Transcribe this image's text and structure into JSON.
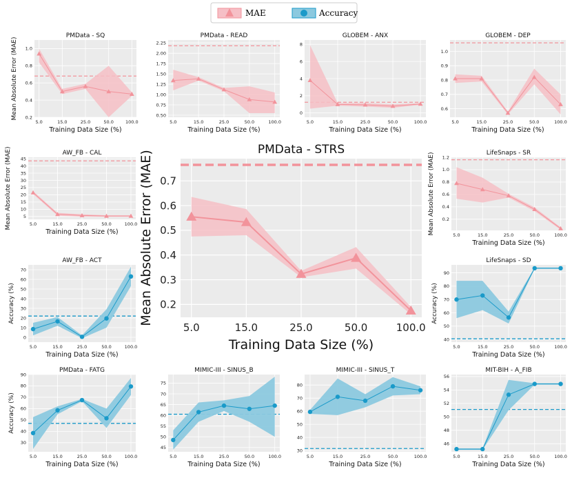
{
  "legend": {
    "mae_label": "MAE",
    "acc_label": "Accuracy",
    "mae_color": "#f2939b",
    "acc_color": "#1a9ac9",
    "mae_band_color": "#f6bfc6",
    "acc_band_color": "#8cc9df",
    "plot_bg": "#ebebeb"
  },
  "chart_data": [
    {
      "id": "pm-sq",
      "title": "PMData - SQ",
      "metric": "mae",
      "type": "line",
      "categories": [
        "5.0",
        "15.0",
        "25.0",
        "50.0",
        "100.0"
      ],
      "values": [
        0.94,
        0.5,
        0.56,
        0.5,
        0.47
      ],
      "lower": [
        0.84,
        0.47,
        0.53,
        0.2,
        0.45
      ],
      "upper": [
        1.0,
        0.53,
        0.59,
        0.8,
        0.49
      ],
      "baseline": 0.68,
      "ylim": [
        0.2,
        1.1
      ],
      "yticks": [
        "0.2",
        "0.4",
        "0.6",
        "0.8",
        "1.0"
      ],
      "xlabel": "Training Data Size (%)",
      "ylabel": "Mean Absolute Error (MAE)"
    },
    {
      "id": "pm-read",
      "title": "PMData - READ",
      "metric": "mae",
      "type": "line",
      "categories": [
        "5.0",
        "15.0",
        "25.0",
        "50.0",
        "100.0"
      ],
      "values": [
        1.34,
        1.38,
        1.12,
        0.88,
        0.82
      ],
      "lower": [
        1.1,
        1.34,
        1.08,
        0.55,
        0.55
      ],
      "upper": [
        1.6,
        1.42,
        1.16,
        1.2,
        1.05
      ],
      "baseline": 2.18,
      "ylim": [
        0.45,
        2.32
      ],
      "yticks": [
        "0.50",
        "0.75",
        "1.00",
        "1.25",
        "1.50",
        "1.75",
        "2.00",
        "2.25"
      ],
      "xlabel": "Training Data Size (%)",
      "ylabel": ""
    },
    {
      "id": "globem-anx",
      "title": "GLOBEM - ANX",
      "metric": "mae",
      "type": "line",
      "categories": [
        "5.0",
        "15.0",
        "25.0",
        "50.0",
        "100.0"
      ],
      "values": [
        3.8,
        1.0,
        0.95,
        0.8,
        1.05
      ],
      "lower": [
        0.5,
        0.85,
        0.75,
        0.6,
        0.95
      ],
      "upper": [
        7.9,
        1.15,
        1.15,
        1.0,
        1.15
      ],
      "baseline": 1.25,
      "ylim": [
        -0.5,
        8.5
      ],
      "yticks": [
        "0",
        "2",
        "4",
        "6",
        "8"
      ],
      "xlabel": "Training Data Size (%)",
      "ylabel": ""
    },
    {
      "id": "globem-dep",
      "title": "GLOBEM - DEP",
      "metric": "mae",
      "type": "line",
      "categories": [
        "5.0",
        "15.0",
        "25.0",
        "50.0",
        "100.0"
      ],
      "values": [
        0.81,
        0.81,
        0.57,
        0.82,
        0.63
      ],
      "lower": [
        0.78,
        0.79,
        0.56,
        0.77,
        0.56
      ],
      "upper": [
        0.84,
        0.83,
        0.58,
        0.88,
        0.7
      ],
      "baseline": 1.06,
      "ylim": [
        0.54,
        1.08
      ],
      "yticks": [
        "0.6",
        "0.7",
        "0.8",
        "0.9",
        "1.0"
      ],
      "xlabel": "Training Data Size (%)",
      "ylabel": ""
    },
    {
      "id": "aw-cal",
      "title": "AW_FB - CAL",
      "metric": "mae",
      "type": "line",
      "categories": [
        "5.0",
        "15.0",
        "25.0",
        "50.0",
        "100.0"
      ],
      "values": [
        21.5,
        6.5,
        5.7,
        5.3,
        5.3
      ],
      "lower": [
        20.5,
        5.5,
        4.9,
        4.8,
        4.8
      ],
      "upper": [
        22.5,
        7.5,
        6.5,
        5.8,
        5.8
      ],
      "baseline": 43.5,
      "ylim": [
        3,
        46
      ],
      "yticks": [
        "5",
        "10",
        "15",
        "20",
        "25",
        "30",
        "35",
        "40",
        "45"
      ],
      "xlabel": "Training Data Size (%)",
      "ylabel": "Mean Absolute Error (MAE)"
    },
    {
      "id": "pm-strs",
      "title": "PMData - STRS",
      "metric": "mae",
      "type": "line",
      "categories": [
        "5.0",
        "15.0",
        "25.0",
        "50.0",
        "100.0"
      ],
      "values": [
        0.555,
        0.533,
        0.323,
        0.388,
        0.175
      ],
      "lower": [
        0.475,
        0.48,
        0.31,
        0.345,
        0.16
      ],
      "upper": [
        0.635,
        0.586,
        0.336,
        0.432,
        0.19
      ],
      "baseline": 0.765,
      "ylim": [
        0.148,
        0.79
      ],
      "yticks": [
        "0.2",
        "0.3",
        "0.4",
        "0.5",
        "0.6",
        "0.7"
      ],
      "xlabel": "Training Data Size (%)",
      "ylabel": "Mean Absolute Error (MAE)"
    },
    {
      "id": "ls-sr",
      "title": "LifeSnaps - SR",
      "metric": "mae",
      "type": "line",
      "categories": [
        "5.0",
        "15.0",
        "25.0",
        "50.0",
        "100.0"
      ],
      "values": [
        0.78,
        0.68,
        0.58,
        0.36,
        0.05
      ],
      "lower": [
        0.53,
        0.47,
        0.55,
        0.33,
        0.03
      ],
      "upper": [
        1.04,
        0.87,
        0.61,
        0.39,
        0.07
      ],
      "baseline": 1.16,
      "ylim": [
        0.02,
        1.2
      ],
      "yticks": [
        "0.2",
        "0.4",
        "0.6",
        "0.8",
        "1.0",
        "1.2"
      ],
      "xlabel": "Training Data Size (%)",
      "ylabel": "Mean Absolute Error (MAE)"
    },
    {
      "id": "aw-act",
      "title": "AW_FB - ACT",
      "metric": "acc",
      "type": "line",
      "categories": [
        "5.0",
        "15.0",
        "25.0",
        "50.0",
        "100.0"
      ],
      "values": [
        8.5,
        16.5,
        0.5,
        19.5,
        63.0
      ],
      "lower": [
        2,
        12,
        -1,
        10,
        53
      ],
      "upper": [
        15,
        21,
        2,
        29,
        73
      ],
      "baseline": 22.0,
      "ylim": [
        -5,
        75
      ],
      "yticks": [
        "0",
        "10",
        "20",
        "30",
        "40",
        "50",
        "60",
        "70"
      ],
      "xlabel": "Training Data Size (%)",
      "ylabel": "Accuracy (%)"
    },
    {
      "id": "ls-sd",
      "title": "LifeSnaps - SD",
      "metric": "acc",
      "type": "line",
      "categories": [
        "5.0",
        "15.0",
        "25.0",
        "50.0",
        "100.0"
      ],
      "values": [
        70.0,
        73.0,
        56.5,
        93.5,
        93.5
      ],
      "lower": [
        56,
        62,
        52,
        93,
        93
      ],
      "upper": [
        84,
        84,
        61,
        94,
        94
      ],
      "baseline": 40.5,
      "ylim": [
        38,
        96
      ],
      "yticks": [
        "40",
        "50",
        "60",
        "70",
        "80",
        "90"
      ],
      "xlabel": "Training Data Size (%)",
      "ylabel": "Accuracy (%)"
    },
    {
      "id": "pm-fatg",
      "title": "PMData - FATG",
      "metric": "acc",
      "type": "line",
      "categories": [
        "5.0",
        "15.0",
        "25.0",
        "50.0",
        "100.0"
      ],
      "values": [
        38.5,
        58.5,
        67.5,
        51.5,
        79.5
      ],
      "lower": [
        24.5,
        55,
        66.5,
        43,
        72
      ],
      "upper": [
        52.5,
        62,
        68.5,
        60,
        87
      ],
      "baseline": 47.0,
      "ylim": [
        22,
        90
      ],
      "yticks": [
        "30",
        "40",
        "50",
        "60",
        "70",
        "80",
        "90"
      ],
      "xlabel": "Training Data Size (%)",
      "ylabel": "Accuracy (%)"
    },
    {
      "id": "mimic-sinus-b",
      "title": "MIMIC-III - SINUS_B",
      "metric": "acc",
      "type": "line",
      "categories": [
        "5.0",
        "15.0",
        "25.0",
        "50.0",
        "100.0"
      ],
      "values": [
        48.5,
        61.5,
        64.5,
        63.0,
        64.5
      ],
      "lower": [
        44,
        57,
        62,
        57,
        50
      ],
      "upper": [
        53,
        66,
        67,
        69,
        78
      ],
      "baseline": 60.5,
      "ylim": [
        43,
        79
      ],
      "yticks": [
        "45",
        "50",
        "55",
        "60",
        "65",
        "70",
        "75"
      ],
      "xlabel": "Training Data Size (%)",
      "ylabel": ""
    },
    {
      "id": "mimic-sinus-t",
      "title": "MIMIC-III - SINUS_T",
      "metric": "acc",
      "type": "line",
      "categories": [
        "5.0",
        "15.0",
        "25.0",
        "50.0",
        "100.0"
      ],
      "values": [
        59.5,
        71.0,
        68.0,
        79.0,
        76.0
      ],
      "lower": [
        58,
        57,
        63,
        72,
        73
      ],
      "upper": [
        61,
        85,
        73,
        86,
        79
      ],
      "baseline": 31.5,
      "ylim": [
        29,
        88
      ],
      "yticks": [
        "30",
        "40",
        "50",
        "60",
        "70",
        "80"
      ],
      "xlabel": "Training Data Size (%)",
      "ylabel": ""
    },
    {
      "id": "mitbih-afib",
      "title": "MIT-BIH - A_FIB",
      "metric": "acc",
      "type": "line",
      "categories": [
        "5.0",
        "15.0",
        "25.0",
        "50.0",
        "100.0"
      ],
      "values": [
        45.2,
        45.2,
        53.3,
        54.9,
        54.9
      ],
      "lower": [
        45.1,
        45.1,
        51,
        54.8,
        54.8
      ],
      "upper": [
        45.3,
        45.3,
        55.5,
        55.0,
        55.0
      ],
      "baseline": 51.1,
      "ylim": [
        44.8,
        56.3
      ],
      "yticks": [
        "46",
        "48",
        "50",
        "52",
        "54",
        "56"
      ],
      "xlabel": "Training Data Size (%)",
      "ylabel": ""
    }
  ]
}
